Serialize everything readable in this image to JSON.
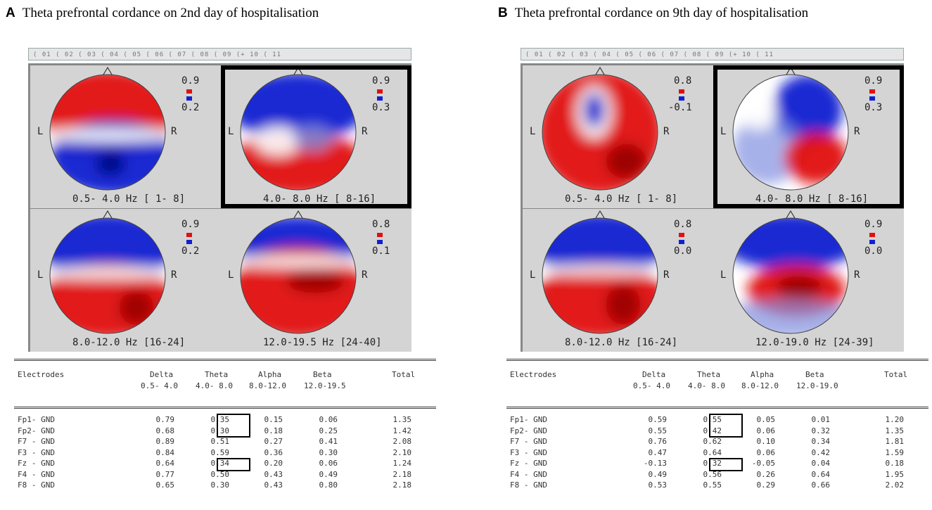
{
  "panels": [
    {
      "letter": "A",
      "title": "Theta prefrontal cordance on 2nd day of hospitalisation",
      "ruler_text": "( 01 ( 02 ( 03 ( 04 ( 05 ( 06 ( 07 ( 08 ( 09 (+ 10 ( 11",
      "maps": [
        {
          "scale_max": "0.9",
          "scale_min": "0.2",
          "left_label": "L",
          "right_label": "R",
          "band": "0.5- 4.0 Hz [ 1- 8]",
          "selected": false
        },
        {
          "scale_max": "0.9",
          "scale_min": "0.3",
          "left_label": "L",
          "right_label": "R",
          "band": "4.0- 8.0 Hz [ 8-16]",
          "selected": true
        },
        {
          "scale_max": "0.9",
          "scale_min": "0.2",
          "left_label": "L",
          "right_label": "R",
          "band": "8.0-12.0 Hz [16-24]",
          "selected": false
        },
        {
          "scale_max": "0.8",
          "scale_min": "0.1",
          "left_label": "L",
          "right_label": "R",
          "band": "12.0-19.5 Hz [24-40]",
          "selected": false
        }
      ],
      "table": {
        "headers": {
          "electrodes": "Electrodes",
          "delta": "Delta",
          "theta": "Theta",
          "alpha": "Alpha",
          "beta": "Beta",
          "total": "Total"
        },
        "ranges": {
          "delta": "0.5- 4.0",
          "theta": "4.0- 8.0",
          "alpha": "8.0-12.0",
          "beta": "12.0-19.5"
        },
        "rows": [
          {
            "electrode": "Fp1- GND",
            "delta": "0.79",
            "theta": "0.35",
            "alpha": "0.15",
            "beta": "0.06",
            "total": "1.35"
          },
          {
            "electrode": "Fp2- GND",
            "delta": "0.68",
            "theta": "0.30",
            "alpha": "0.18",
            "beta": "0.25",
            "total": "1.42"
          },
          {
            "electrode": "F7 - GND",
            "delta": "0.89",
            "theta": "0.51",
            "alpha": "0.27",
            "beta": "0.41",
            "total": "2.08"
          },
          {
            "electrode": "F3 - GND",
            "delta": "0.84",
            "theta": "0.59",
            "alpha": "0.36",
            "beta": "0.30",
            "total": "2.10"
          },
          {
            "electrode": "Fz - GND",
            "delta": "0.64",
            "theta": "0.34",
            "alpha": "0.20",
            "beta": "0.06",
            "total": "1.24"
          },
          {
            "electrode": "F4 - GND",
            "delta": "0.77",
            "theta": "0.50",
            "alpha": "0.43",
            "beta": "0.49",
            "total": "2.18"
          },
          {
            "electrode": "F8 - GND",
            "delta": "0.65",
            "theta": "0.30",
            "alpha": "0.43",
            "beta": "0.80",
            "total": "2.18"
          }
        ]
      }
    },
    {
      "letter": "B",
      "title": "Theta prefrontal cordance on 9th day of hospitalisation",
      "ruler_text": "( 01 ( 02 ( 03 ( 04 ( 05 ( 06 ( 07 ( 08 ( 09 (+ 10 ( 11",
      "maps": [
        {
          "scale_max": "0.8",
          "scale_min": "-0.1",
          "left_label": "L",
          "right_label": "R",
          "band": "0.5- 4.0 Hz [ 1- 8]",
          "selected": false
        },
        {
          "scale_max": "0.9",
          "scale_min": "0.3",
          "left_label": "L",
          "right_label": "R",
          "band": "4.0- 8.0 Hz [ 8-16]",
          "selected": true
        },
        {
          "scale_max": "0.8",
          "scale_min": "0.0",
          "left_label": "L",
          "right_label": "R",
          "band": "8.0-12.0 Hz [16-24]",
          "selected": false
        },
        {
          "scale_max": "0.9",
          "scale_min": "0.0",
          "left_label": "L",
          "right_label": "R",
          "band": "12.0-19.0 Hz [24-39]",
          "selected": false
        }
      ],
      "table": {
        "headers": {
          "electrodes": "Electrodes",
          "delta": "Delta",
          "theta": "Theta",
          "alpha": "Alpha",
          "beta": "Beta",
          "total": "Total"
        },
        "ranges": {
          "delta": "0.5- 4.0",
          "theta": "4.0- 8.0",
          "alpha": "8.0-12.0",
          "beta": "12.0-19.0"
        },
        "rows": [
          {
            "electrode": "Fp1- GND",
            "delta": "0.59",
            "theta": "0.55",
            "alpha": "0.05",
            "beta": "0.01",
            "total": "1.20"
          },
          {
            "electrode": "Fp2- GND",
            "delta": "0.55",
            "theta": "0.42",
            "alpha": "0.06",
            "beta": "0.32",
            "total": "1.35"
          },
          {
            "electrode": "F7 - GND",
            "delta": "0.76",
            "theta": "0.62",
            "alpha": "0.10",
            "beta": "0.34",
            "total": "1.81"
          },
          {
            "electrode": "F3 - GND",
            "delta": "0.47",
            "theta": "0.64",
            "alpha": "0.06",
            "beta": "0.42",
            "total": "1.59"
          },
          {
            "electrode": "Fz - GND",
            "delta": "-0.13",
            "theta": "0.32",
            "alpha": "-0.05",
            "beta": "0.04",
            "total": "0.18"
          },
          {
            "electrode": "F4 - GND",
            "delta": "0.49",
            "theta": "0.56",
            "alpha": "0.26",
            "beta": "0.64",
            "total": "1.95"
          },
          {
            "electrode": "F8 - GND",
            "delta": "0.53",
            "theta": "0.55",
            "alpha": "0.29",
            "beta": "0.66",
            "total": "2.02"
          }
        ]
      }
    }
  ],
  "colors": {
    "positive": "#e01010",
    "negative": "#1020d0",
    "neutral": "#ffffff",
    "panel_bg": "#d4d4d4"
  }
}
